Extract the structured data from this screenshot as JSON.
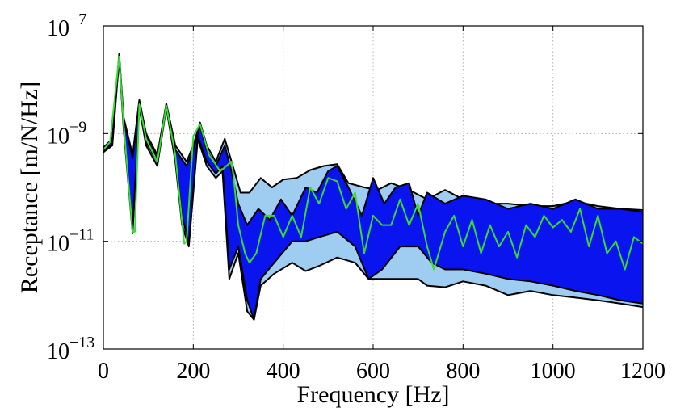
{
  "chart_data": {
    "type": "area",
    "title": "",
    "xlabel": "Frequency [Hz]",
    "ylabel": "Receptance [m/N/Hz]",
    "xlim": [
      0,
      1200
    ],
    "ylim": [
      1e-13,
      1e-07
    ],
    "yscale": "log",
    "grid": true,
    "xticks": [
      {
        "value": 0,
        "label": "0"
      },
      {
        "value": 200,
        "label": "200"
      },
      {
        "value": 400,
        "label": "400"
      },
      {
        "value": 600,
        "label": "600"
      },
      {
        "value": 800,
        "label": "800"
      },
      {
        "value": 1000,
        "label": "1000"
      },
      {
        "value": 1200,
        "label": "1200"
      }
    ],
    "yticks": [
      {
        "value": 1e-13,
        "base": "10",
        "exp": "−13"
      },
      {
        "value": 1e-11,
        "base": "10",
        "exp": "−11"
      },
      {
        "value": 1e-09,
        "base": "10",
        "exp": "−9"
      },
      {
        "value": 1e-07,
        "base": "10",
        "exp": "−7"
      }
    ],
    "colors": {
      "outer_band": "#9fcdf2",
      "inner_band": "#0a14ee",
      "band_edge": "#000000",
      "mean_line": "#33dd33"
    },
    "series": [
      {
        "role": "outer-band-upper",
        "x": [
          0,
          20,
          35,
          45,
          65,
          80,
          95,
          120,
          140,
          160,
          185,
          200,
          215,
          230,
          250,
          270,
          290,
          305,
          325,
          350,
          375,
          400,
          430,
          460,
          490,
          520,
          545,
          580,
          610,
          640,
          680,
          720,
          760,
          800,
          850,
          900,
          950,
          1000,
          1050,
          1100,
          1150,
          1200
        ],
        "y": [
          5.5e-10,
          8e-10,
          3e-08,
          2e-09,
          4e-10,
          4.2e-09,
          1e-09,
          4e-10,
          3.6e-09,
          6e-10,
          3e-10,
          6e-10,
          1.6e-09,
          6e-10,
          3e-10,
          8e-10,
          2.2e-10,
          8e-11,
          8e-11,
          1.5e-10,
          1e-10,
          1.4e-10,
          1.5e-10,
          2.1e-10,
          2.5e-10,
          2.7e-10,
          1.2e-10,
          1e-10,
          9e-11,
          1.2e-10,
          9e-11,
          6e-11,
          9e-11,
          6e-11,
          5e-11,
          5e-11,
          4.5e-11,
          4.5e-11,
          5.5e-11,
          4.5e-11,
          4e-11,
          3.8e-11
        ]
      },
      {
        "role": "outer-band-lower",
        "x": [
          0,
          20,
          35,
          45,
          65,
          80,
          95,
          120,
          140,
          160,
          175,
          190,
          210,
          230,
          250,
          265,
          280,
          300,
          320,
          335,
          350,
          380,
          420,
          450,
          480,
          520,
          560,
          590,
          620,
          650,
          700,
          720,
          760,
          800,
          850,
          900,
          950,
          1000,
          1050,
          1100,
          1150,
          1200
        ],
        "y": [
          4.5e-10,
          6e-10,
          2.5e-08,
          1.2e-09,
          1.4e-11,
          3e-09,
          6e-10,
          2.5e-10,
          3e-09,
          3e-10,
          2e-11,
          8e-12,
          8e-10,
          2.5e-10,
          1.5e-10,
          2e-10,
          2e-12,
          6e-12,
          5e-13,
          3.5e-13,
          1.5e-12,
          2.5e-12,
          4e-12,
          2.8e-12,
          3.5e-12,
          5e-12,
          4e-12,
          2e-12,
          2e-12,
          2e-12,
          2e-12,
          1.5e-12,
          1.4e-12,
          1.8e-12,
          1.5e-12,
          1e-12,
          1.2e-12,
          1e-12,
          9e-13,
          8e-13,
          7e-13,
          6e-13
        ]
      },
      {
        "role": "inner-band-upper",
        "x": [
          0,
          20,
          35,
          45,
          65,
          80,
          95,
          120,
          140,
          160,
          185,
          200,
          215,
          230,
          250,
          270,
          285,
          300,
          320,
          345,
          370,
          395,
          420,
          450,
          475,
          500,
          520,
          545,
          575,
          600,
          625,
          650,
          680,
          700,
          720,
          760,
          800,
          850,
          900,
          950,
          1000,
          1050,
          1100,
          1150,
          1200
        ],
        "y": [
          5.2e-10,
          7.5e-10,
          2.8e-08,
          1.8e-09,
          3.5e-10,
          4e-09,
          9e-10,
          3.5e-10,
          3.4e-09,
          5e-10,
          2.5e-10,
          5e-10,
          1.4e-09,
          5e-10,
          2.5e-10,
          6e-10,
          2e-10,
          5e-11,
          2e-11,
          4e-11,
          2.5e-11,
          6e-11,
          3e-11,
          1e-10,
          8e-11,
          2e-10,
          2.5e-10,
          1e-10,
          3e-11,
          1.5e-10,
          5e-11,
          1e-10,
          1.2e-10,
          3e-11,
          8e-11,
          5e-11,
          7e-11,
          6e-11,
          4e-11,
          5e-11,
          4e-11,
          6e-11,
          4e-11,
          4e-11,
          3.5e-11
        ]
      },
      {
        "role": "inner-band-lower",
        "x": [
          0,
          20,
          35,
          45,
          65,
          80,
          95,
          120,
          140,
          160,
          175,
          190,
          210,
          230,
          250,
          265,
          280,
          300,
          320,
          335,
          350,
          380,
          420,
          450,
          480,
          520,
          560,
          590,
          620,
          660,
          700,
          730,
          760,
          800,
          850,
          900,
          950,
          1000,
          1050,
          1100,
          1150,
          1200
        ],
        "y": [
          4.8e-10,
          6.5e-10,
          2.6e-08,
          1.4e-09,
          1.6e-11,
          3.3e-09,
          7e-10,
          3e-10,
          3.2e-09,
          4e-10,
          3e-11,
          9e-12,
          9e-10,
          3e-10,
          1.8e-10,
          2.5e-10,
          3e-12,
          8e-12,
          8e-13,
          3.5e-13,
          2e-12,
          4e-12,
          1e-11,
          1e-11,
          1.2e-11,
          1.5e-11,
          8e-12,
          2e-12,
          3e-12,
          8e-12,
          8e-12,
          4e-12,
          3e-12,
          3e-12,
          2.5e-12,
          2e-12,
          1.8e-12,
          1.5e-12,
          1.2e-12,
          1e-12,
          8e-13,
          7e-13
        ]
      },
      {
        "role": "mean-line",
        "x": [
          0,
          15,
          35,
          45,
          65,
          70,
          80,
          95,
          120,
          140,
          160,
          180,
          185,
          200,
          215,
          235,
          260,
          285,
          290,
          300,
          315,
          325,
          340,
          360,
          380,
          400,
          420,
          440,
          460,
          480,
          500,
          520,
          540,
          560,
          580,
          600,
          620,
          640,
          660,
          680,
          700,
          720,
          735,
          760,
          780,
          800,
          820,
          840,
          860,
          880,
          900,
          920,
          940,
          960,
          980,
          1000,
          1020,
          1040,
          1060,
          1080,
          1100,
          1120,
          1140,
          1160,
          1180,
          1200
        ],
        "y": [
          5e-10,
          7e-10,
          2.7e-08,
          1.5e-09,
          1.5e-11,
          1.5e-11,
          3.5e-09,
          8e-10,
          3e-10,
          3.3e-09,
          4e-10,
          9e-12,
          1e-11,
          9e-10,
          1.5e-09,
          4e-10,
          2e-10,
          3e-10,
          1.5e-10,
          2e-11,
          6e-12,
          4e-12,
          6e-12,
          3e-11,
          3e-11,
          1.2e-11,
          3e-11,
          1.2e-11,
          1e-10,
          5e-11,
          1.5e-10,
          1.3e-10,
          4e-11,
          8e-11,
          6e-12,
          3e-11,
          2e-11,
          2e-11,
          6e-11,
          2e-11,
          5e-11,
          8e-12,
          3e-12,
          1.5e-11,
          3e-11,
          8e-12,
          2.5e-11,
          6e-12,
          2e-11,
          8e-12,
          1.5e-11,
          5e-12,
          2e-11,
          1.2e-11,
          3e-11,
          1.8e-11,
          2.5e-11,
          1.5e-11,
          4e-11,
          8e-12,
          3e-11,
          6e-12,
          1e-11,
          3e-12,
          1.2e-11,
          9e-12
        ]
      }
    ]
  }
}
